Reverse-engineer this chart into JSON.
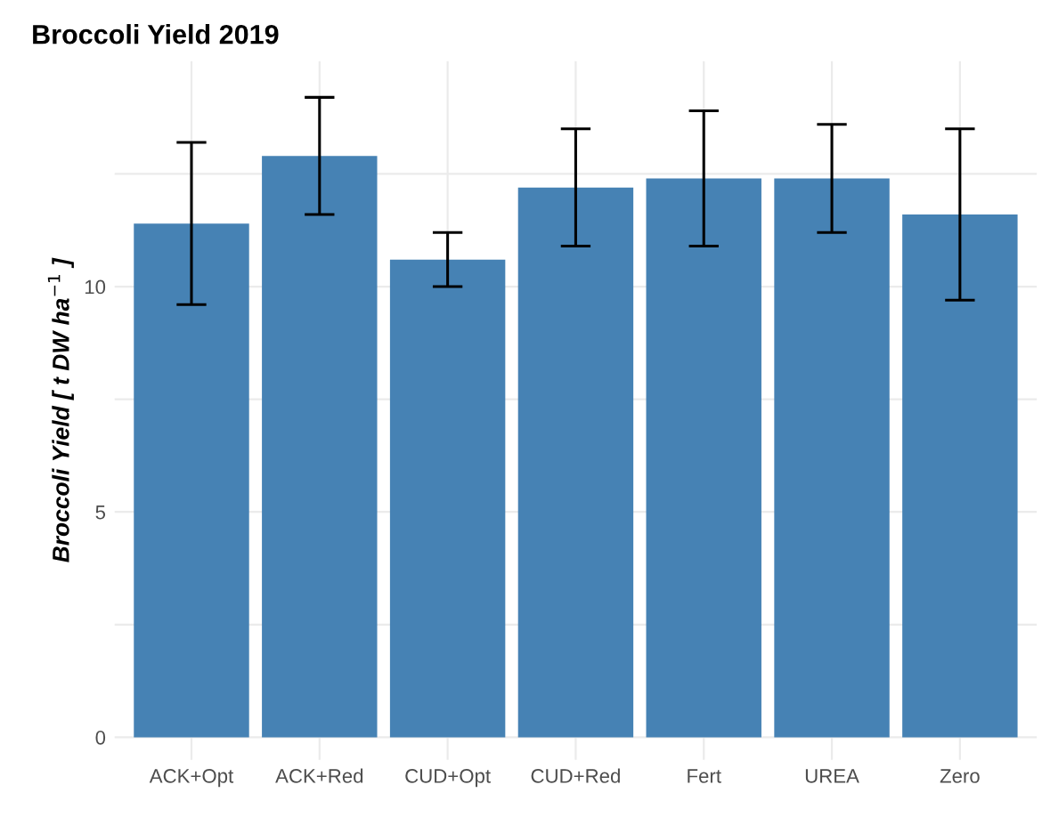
{
  "chart_data": {
    "type": "bar",
    "title": "Broccoli Yield 2019",
    "ylabel": "Broccoli Yield [ t DW ha$^{−1}$ ]",
    "categories": [
      "ACK+Opt",
      "ACK+Red",
      "CUD+Opt",
      "CUD+Red",
      "Fert",
      "UREA",
      "Zero"
    ],
    "values": [
      11.4,
      12.9,
      10.6,
      12.2,
      12.4,
      12.4,
      11.6
    ],
    "errors": [
      [
        9.6,
        13.2
      ],
      [
        11.6,
        14.2
      ],
      [
        10.0,
        11.2
      ],
      [
        10.9,
        13.5
      ],
      [
        10.9,
        13.9
      ],
      [
        11.2,
        13.6
      ],
      [
        9.7,
        13.5
      ]
    ],
    "color": "#4682b4",
    "ylim": [
      -0.5,
      15
    ],
    "yticks": [
      0,
      {
        "value": 2.5,
        "label": null
      },
      5,
      {
        "value": 7.5,
        "label": null
      },
      10,
      {
        "value": 12.5,
        "label": null
      }
    ],
    "grid": true
  }
}
